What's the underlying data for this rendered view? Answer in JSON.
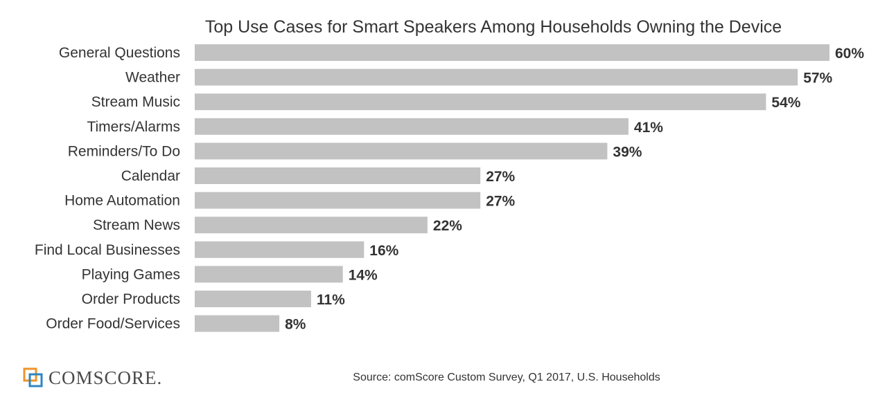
{
  "chart_data": {
    "type": "bar",
    "orientation": "horizontal",
    "title": "Top Use Cases for Smart Speakers Among Households Owning the Device",
    "categories": [
      "General Questions",
      "Weather",
      "Stream Music",
      "Timers/Alarms",
      "Reminders/To Do",
      "Calendar",
      "Home Automation",
      "Stream News",
      "Find Local Businesses",
      "Playing Games",
      "Order Products",
      "Order Food/Services"
    ],
    "values": [
      60,
      57,
      54,
      41,
      39,
      27,
      27,
      22,
      16,
      14,
      11,
      8
    ],
    "value_labels": [
      "60%",
      "57%",
      "54%",
      "41%",
      "39%",
      "27%",
      "27%",
      "22%",
      "16%",
      "14%",
      "11%",
      "8%"
    ],
    "unit": "%",
    "xlim": [
      0,
      60
    ],
    "grid": false,
    "legend": "none",
    "bar_color": "#c2c2c2"
  },
  "footer": {
    "logo_text": "comScore",
    "logo_text_display": "COMSCORE.",
    "source": "Source: comScore Custom Survey, Q1 2017, U.S. Households"
  },
  "colors": {
    "bar": "#c2c2c2",
    "text": "#333333",
    "logo_orange": "#f0932b",
    "logo_blue": "#2e86c1"
  },
  "icons": {
    "logo_mark": "comscore-logo-mark-icon"
  }
}
